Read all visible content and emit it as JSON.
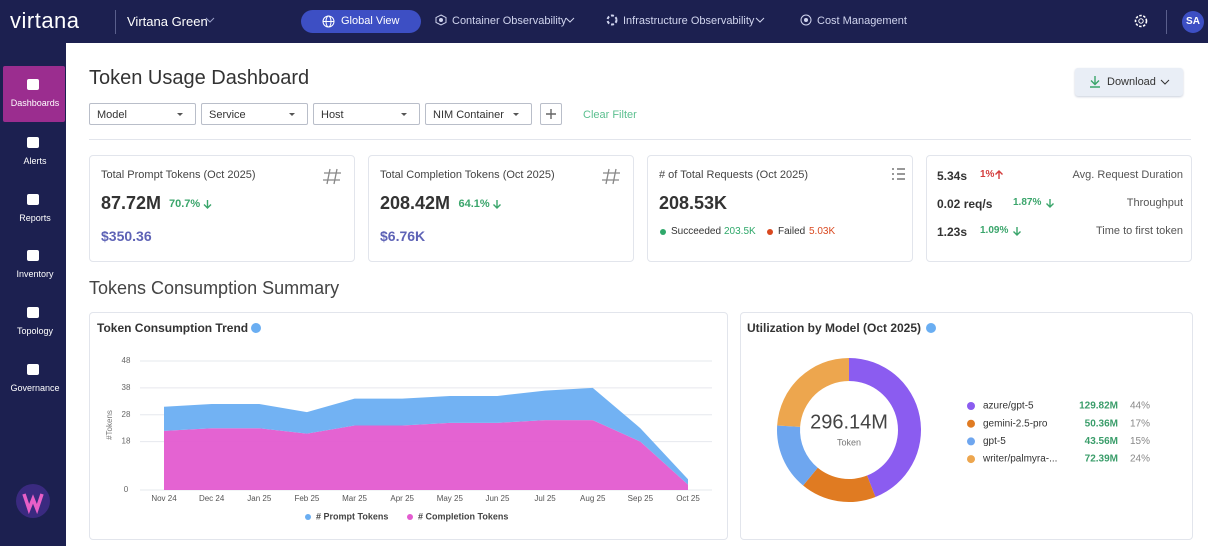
{
  "header": {
    "logo": "virtana",
    "workspace": "Virtana Green",
    "nav": [
      "Global View",
      "Container Observability",
      "Infrastructure Observability",
      "Cost Management"
    ],
    "avatar": "SA"
  },
  "sidebar": [
    "Dashboards",
    "Alerts",
    "Reports",
    "Inventory",
    "Topology",
    "Governance"
  ],
  "page": {
    "title": "Token Usage Dashboard",
    "filters": [
      "Model",
      "Service",
      "Host",
      "NIM Container"
    ],
    "clear_filter": "Clear Filter",
    "download": "Download",
    "section_title": "Tokens Consumption Summary"
  },
  "cards": [
    {
      "title": "Total Prompt Tokens (Oct 2025)",
      "value": "87.72M",
      "change": "70.7%",
      "cost": "$350.36"
    },
    {
      "title": "Total Completion Tokens (Oct 2025)",
      "value": "208.42M",
      "change": "64.1%",
      "cost": "$6.76K"
    },
    {
      "title": "# of Total Requests (Oct 2025)",
      "value": "208.53K",
      "succeeded_label": "Succeeded",
      "succeeded": "203.5K",
      "failed_label": "Failed",
      "failed": "5.03K"
    }
  ],
  "metrics": [
    {
      "value": "5.34s",
      "change": "1%",
      "label": "Avg. Request Duration"
    },
    {
      "value": "0.02 req/s",
      "change": "1.87%",
      "label": "Throughput"
    },
    {
      "value": "1.23s",
      "change": "1.09%",
      "label": "Time to first token"
    }
  ],
  "charts": [
    {
      "type": "area",
      "title": "Token Consumption Trend",
      "y_label": "#Tokens",
      "stacked": true,
      "categories": [
        "Nov 24",
        "Dec 24",
        "Jan 25",
        "Feb 25",
        "Mar 25",
        "Apr 25",
        "May 25",
        "Jun 25",
        "Jul 25",
        "Aug 25",
        "Sep 25",
        "Oct 25"
      ],
      "series": [
        {
          "name": "# Prompt Tokens",
          "color": "#6aaef2",
          "values": [
            9,
            9,
            9,
            8,
            10,
            10,
            10,
            10,
            11,
            12,
            5,
            2
          ]
        },
        {
          "name": "# Completion Tokens",
          "color": "#e35bd0",
          "values": [
            22,
            23,
            23,
            21,
            24,
            24,
            25,
            25,
            26,
            26,
            18,
            2
          ]
        }
      ],
      "ylim": [
        0,
        48
      ],
      "yticks": [
        0,
        18,
        28,
        38,
        48
      ],
      "grid": true
    },
    {
      "type": "pie",
      "title": "Utilization by Model (Oct 2025)",
      "center_value": "296.14M",
      "center_label": "Token",
      "categories": [
        "azure/gpt-5",
        "gemini-2.5-pro",
        "gpt-5",
        "writer/palmyra-..."
      ],
      "amounts": [
        "129.82M",
        "50.36M",
        "43.56M",
        "72.39M"
      ],
      "values": [
        44,
        17,
        15,
        24
      ],
      "value_labels": [
        "44%",
        "17%",
        "15%",
        "24%"
      ],
      "colors": [
        "#8b5cf0",
        "#e07b22",
        "#6ea6ef",
        "#eda64e"
      ]
    }
  ]
}
